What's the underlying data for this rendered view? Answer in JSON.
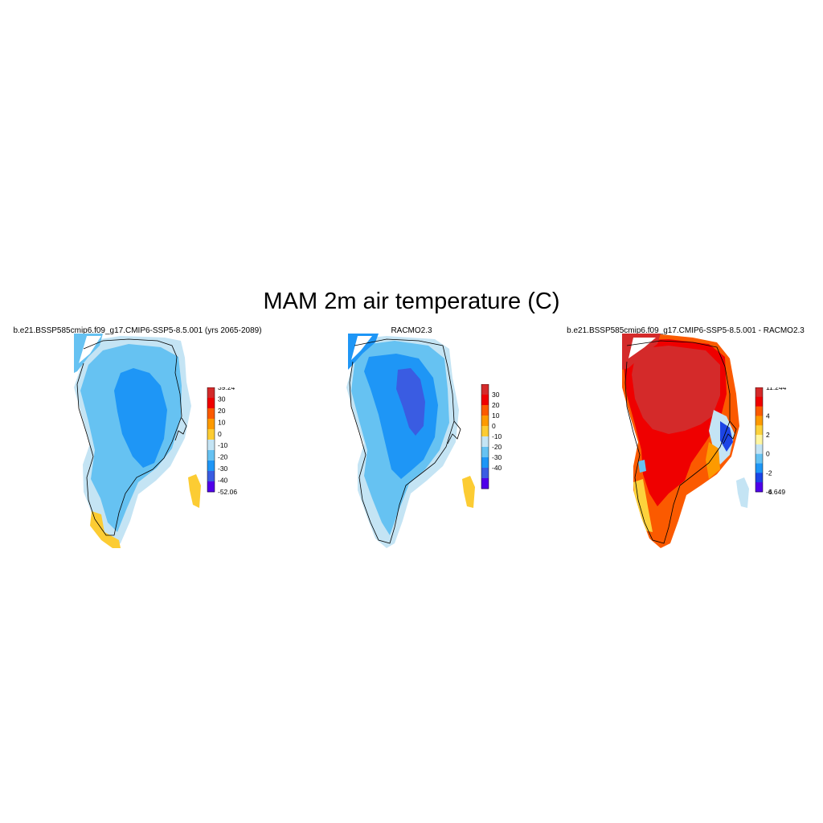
{
  "title": "MAM 2m air temperature (C)",
  "panels": [
    {
      "title": "b.e21.BSSP585cmip6.f09_g17.CMIP6-SSP5-8.5.001 (yrs 2065-2089)",
      "colorbar": {
        "labels": [
          "39.24",
          "30",
          "20",
          "10",
          "0",
          "-10",
          "-20",
          "-30",
          "-40",
          "-52.06"
        ],
        "colors": [
          "#d42a2a",
          "#ef0000",
          "#fb5a00",
          "#fd9a00",
          "#fccc33",
          "#c4e4f4",
          "#66c2f2",
          "#1e96f6",
          "#3a5ce2",
          "#5000ea"
        ]
      }
    },
    {
      "title": "RACMO2.3",
      "colorbar": {
        "labels": [
          "30",
          "20",
          "10",
          "0",
          "-10",
          "-20",
          "-30",
          "-40"
        ],
        "colors": [
          "#d42a2a",
          "#ef0000",
          "#fb5a00",
          "#fd9a00",
          "#fccc33",
          "#c4e4f4",
          "#66c2f2",
          "#1e96f6",
          "#3a5ce2",
          "#5000ea"
        ]
      }
    },
    {
      "title": "b.e21.BSSP585cmip6.f09_g17.CMIP6-SSP5-8.5.001 - RACMO2.3",
      "colorbar": {
        "labels": [
          "11.244",
          "4",
          "2",
          "0",
          "-2",
          "-4",
          "-6.649"
        ],
        "colors": [
          "#d42a2a",
          "#ef0000",
          "#fb5a00",
          "#fd9a00",
          "#fcd23c",
          "#fff6a0",
          "#c4e4f4",
          "#66c2f2",
          "#1e96f6",
          "#1c44e6",
          "#5000ea"
        ]
      }
    }
  ]
}
